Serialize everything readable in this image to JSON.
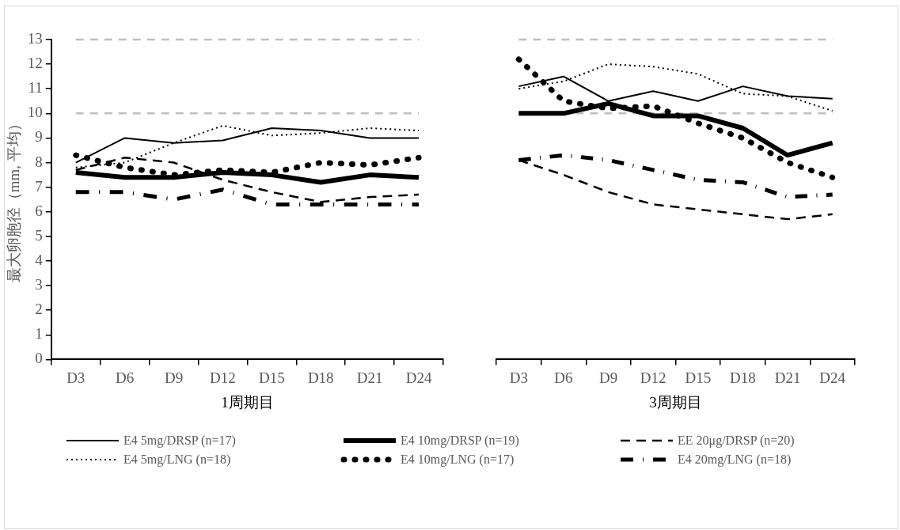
{
  "chart_data": [
    {
      "type": "line",
      "xlabel": "1周期目",
      "ylabel": "最大卵胞径（mm, 平均）",
      "categories": [
        "D3",
        "D6",
        "D9",
        "D12",
        "D15",
        "D18",
        "D21",
        "D24"
      ],
      "ylim": [
        0,
        13
      ],
      "yticks": [
        0,
        1,
        2,
        3,
        4,
        5,
        6,
        7,
        8,
        9,
        10,
        11,
        12,
        13
      ],
      "grid": false,
      "legend": "bottom",
      "marker": "none",
      "ref_lines": [
        {
          "axis": "y",
          "value": 10,
          "color": "#bfbfbf",
          "line_style": "dashed"
        },
        {
          "axis": "y",
          "value": 13,
          "color": "#bfbfbf",
          "line_style": "dashed"
        }
      ],
      "series": [
        {
          "name": "E4 5mg/DRSP (n=17)",
          "color": "#000000",
          "line_style": "solid",
          "values": [
            8.0,
            9.0,
            8.8,
            8.9,
            9.4,
            9.3,
            9.0,
            9.0
          ]
        },
        {
          "name": "E4 10mg/DRSP (n=19)",
          "color": "#000000",
          "line_style": "solid",
          "values": [
            7.6,
            7.4,
            7.4,
            7.6,
            7.5,
            7.2,
            7.5,
            7.4
          ]
        },
        {
          "name": "EE 20μg/DRSP (n=20)",
          "color": "#000000",
          "line_style": "dashed",
          "values": [
            7.7,
            8.2,
            8.0,
            7.3,
            6.8,
            6.4,
            6.6,
            6.7
          ]
        },
        {
          "name": "E4 5mg/LNG (n=18)",
          "color": "#000000",
          "line_style": "dotted",
          "values": [
            7.8,
            8.0,
            8.8,
            9.5,
            9.1,
            9.2,
            9.4,
            9.3
          ]
        },
        {
          "name": "E4 10mg/LNG (n=17)",
          "color": "#000000",
          "line_style": "dotted",
          "values": [
            8.3,
            7.8,
            7.5,
            7.7,
            7.6,
            8.0,
            7.9,
            8.2
          ]
        },
        {
          "name": "E4 20mg/LNG (n=18)",
          "color": "#000000",
          "line_style": "dashed",
          "values": [
            6.8,
            6.8,
            6.5,
            6.9,
            6.3,
            6.3,
            6.3,
            6.3
          ]
        }
      ]
    },
    {
      "type": "line",
      "xlabel": "3周期目",
      "categories": [
        "D3",
        "D6",
        "D9",
        "D12",
        "D15",
        "D18",
        "D21",
        "D24"
      ],
      "ylim": [
        0,
        13
      ],
      "yticks": [
        0,
        1,
        2,
        3,
        4,
        5,
        6,
        7,
        8,
        9,
        10,
        11,
        12,
        13
      ],
      "grid": false,
      "legend": false,
      "marker": "none",
      "tick_labels": "x",
      "ref_lines": [
        {
          "axis": "y",
          "value": 10,
          "color": "#bfbfbf",
          "line_style": "dashed"
        },
        {
          "axis": "y",
          "value": 13,
          "color": "#bfbfbf",
          "line_style": "dashed"
        }
      ],
      "series": [
        {
          "color": "#000000",
          "line_style": "solid",
          "values": [
            11.1,
            11.5,
            10.5,
            10.9,
            10.5,
            11.1,
            10.7,
            10.6
          ]
        },
        {
          "color": "#000000",
          "line_style": "solid",
          "values": [
            10.0,
            10.0,
            10.4,
            9.9,
            9.9,
            9.4,
            8.3,
            8.8
          ]
        },
        {
          "color": "#000000",
          "line_style": "dashed",
          "values": [
            8.1,
            7.5,
            6.8,
            6.3,
            6.1,
            5.9,
            5.7,
            5.9
          ]
        },
        {
          "color": "#000000",
          "line_style": "dotted",
          "values": [
            11.0,
            11.3,
            12.0,
            11.9,
            11.6,
            10.8,
            10.7,
            10.1
          ]
        },
        {
          "color": "#000000",
          "line_style": "dotted",
          "values": [
            12.2,
            10.5,
            10.2,
            10.3,
            9.6,
            9.0,
            8.0,
            7.4
          ]
        },
        {
          "color": "#000000",
          "line_style": "dashed",
          "values": [
            8.1,
            8.3,
            8.1,
            7.7,
            7.3,
            7.2,
            6.6,
            6.7
          ]
        }
      ]
    }
  ]
}
